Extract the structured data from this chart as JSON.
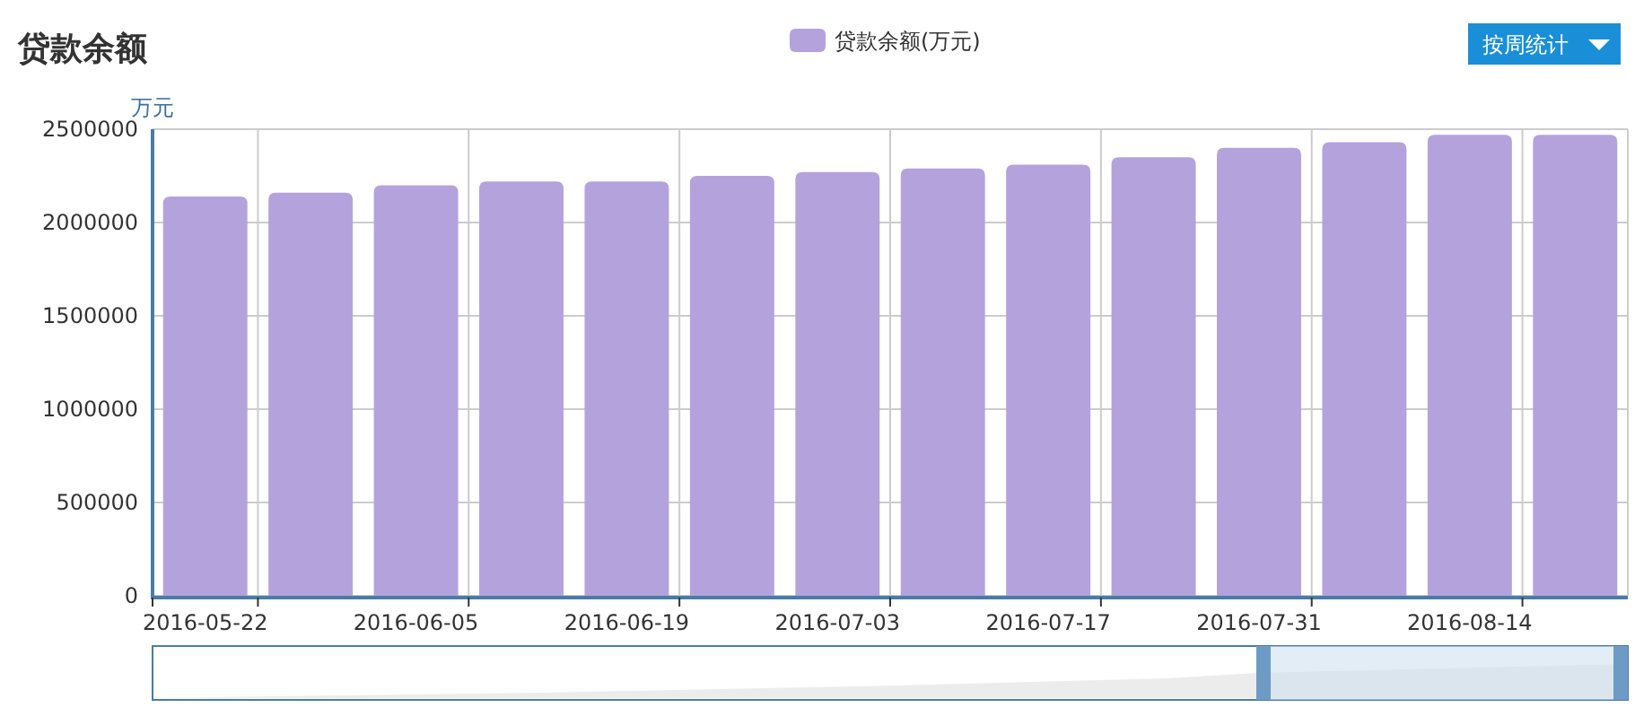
{
  "chart_data": {
    "type": "bar",
    "title": "贷款余额",
    "ylabel": "万元",
    "categories": [
      "2016-05-22",
      null,
      "2016-06-05",
      null,
      "2016-06-19",
      null,
      "2016-07-03",
      null,
      "2016-07-17",
      null,
      "2016-07-31",
      null,
      "2016-08-14",
      null
    ],
    "series": [
      {
        "name": "贷款余额(万元)",
        "color": "#b4a2dd",
        "values": [
          2140000,
          2160000,
          2200000,
          2220000,
          2220000,
          2250000,
          2270000,
          2290000,
          2310000,
          2350000,
          2400000,
          2430000,
          2470000,
          2470000
        ]
      }
    ],
    "ylim": [
      0,
      2500000
    ],
    "yticks": [
      0,
      500000,
      1000000,
      1500000,
      2000000,
      2500000
    ],
    "grid": true,
    "legend": "top",
    "annotations": [
      "按周统计"
    ]
  }
}
